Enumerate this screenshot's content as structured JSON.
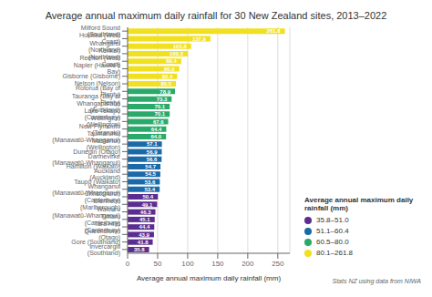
{
  "chart_data": {
    "type": "bar",
    "orientation": "horizontal",
    "stacked": true,
    "title": "Average annual maximum daily rainfall for 30 New Zealand sites, 2013–2022",
    "x_label": "Average annual maximum daily rainfall (mm)",
    "annotations": [
      "Average annual maximum daily rainfall (mm)",
      "Stats NZ using data from NIWA"
    ],
    "categories": [
      "Milford Sound (Southland)",
      "Hokitika (West Coast)",
      "Whangarei (Northland)",
      "Kerikeri (Northland)",
      "Reefton (West Coast)",
      "Napier (Hawke's Bay)",
      "Gisborne (Gisborne)",
      "Nelson (Nelson)",
      "Rotorua (Bay of Plenty)",
      "Tauranga (Bay of Plenty)",
      "Whangaparaoa (Auckland)",
      "Lake Tekapo (Canterbury)",
      "Wellington (Wellington)",
      "New Plymouth (Taranaki)",
      "Taumarunui (Manawatū-Whanganui)",
      "Masterton (Wellington)",
      "Dunedin (Otago)",
      "Dannevirke (Manawatū-Whanganui)",
      "Hamilton (Waikato)",
      "Auckland (Auckland)",
      "Taupō (Waikato)",
      "Whanganui (Manawatū-Whanganui)",
      "Christchurch (Canterbury)",
      "Blenheim (Marlborough)",
      "Waiouru (Manawatū-Whanganui)",
      "Timaru (Canterbury)",
      "Tara Hills (Canterbury)",
      "Queenstown (Otago)",
      "Gore (Southland)",
      "Invercargill (Southland)"
    ],
    "series": [
      {
        "name": "35.8–51.0",
        "color": "#5c2d91",
        "values": [
          null,
          null,
          null,
          null,
          null,
          null,
          null,
          null,
          null,
          null,
          null,
          null,
          null,
          null,
          null,
          null,
          null,
          null,
          null,
          null,
          null,
          null,
          50.4,
          49.1,
          46.3,
          45.1,
          44.4,
          43.9,
          41.8,
          35.8
        ],
        "value_labels": [
          null,
          null,
          null,
          null,
          null,
          null,
          null,
          null,
          null,
          null,
          null,
          null,
          null,
          null,
          null,
          null,
          null,
          null,
          null,
          null,
          null,
          null,
          "50.4",
          "49.1",
          "46.3",
          "45.1",
          "44.4",
          "43.9",
          "41.8",
          "35.8"
        ]
      },
      {
        "name": "51.1–60.4",
        "color": "#1a6aaa",
        "values": [
          null,
          null,
          null,
          null,
          null,
          null,
          null,
          null,
          null,
          null,
          null,
          null,
          null,
          null,
          null,
          57.1,
          56.9,
          56.6,
          54.7,
          54.5,
          53.6,
          53.4,
          null,
          null,
          null,
          null,
          null,
          null,
          null,
          null
        ],
        "value_labels": [
          null,
          null,
          null,
          null,
          null,
          null,
          null,
          null,
          null,
          null,
          null,
          null,
          null,
          null,
          null,
          "57.1",
          "56.9",
          "56.6",
          "54.7",
          "54.5",
          "53.6",
          "53.4",
          null,
          null,
          null,
          null,
          null,
          null,
          null,
          null
        ]
      },
      {
        "name": "60.5–80.0",
        "color": "#2aaa6a",
        "values": [
          null,
          null,
          null,
          null,
          null,
          null,
          null,
          null,
          78.9,
          73.3,
          70.1,
          70.1,
          67.6,
          64.4,
          64.0,
          null,
          null,
          null,
          null,
          null,
          null,
          null,
          null,
          null,
          null,
          null,
          null,
          null,
          null,
          null
        ],
        "value_labels": [
          null,
          null,
          null,
          null,
          null,
          null,
          null,
          null,
          "78.9",
          "73.3",
          "70.1",
          "70.1",
          "67.6",
          "64.4",
          "64.0",
          null,
          null,
          null,
          null,
          null,
          null,
          null,
          null,
          null,
          null,
          null,
          null,
          null,
          null,
          null
        ]
      },
      {
        "name": "80.1–261.8",
        "color": "#f0e020",
        "values": [
          261.8,
          137.9,
          105.8,
          100.3,
          89.4,
          86.0,
          82.4,
          80.5,
          null,
          null,
          null,
          null,
          null,
          null,
          null,
          null,
          null,
          null,
          null,
          null,
          null,
          null,
          null,
          null,
          null,
          null,
          null,
          null,
          null,
          null
        ],
        "value_labels": [
          "261.8",
          "137.9",
          "105.8",
          "100.3",
          "89.4",
          "86.0",
          "82.4",
          "80.5",
          null,
          null,
          null,
          null,
          null,
          null,
          null,
          null,
          null,
          null,
          null,
          null,
          null,
          null,
          null,
          null,
          null,
          null,
          null,
          null,
          null,
          null
        ]
      }
    ],
    "xlim": [
      0,
      270
    ],
    "xticks": [
      0,
      50,
      100,
      150,
      200,
      250
    ],
    "grid": true,
    "data_labels": true,
    "legend": "right"
  }
}
